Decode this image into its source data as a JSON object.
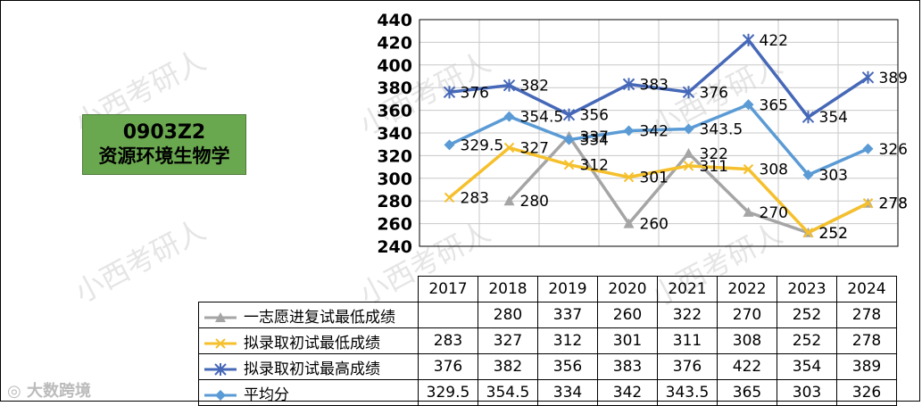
{
  "chart_data": {
    "type": "line",
    "categories": [
      "2017",
      "2018",
      "2019",
      "2020",
      "2021",
      "2022",
      "2023",
      "2024"
    ],
    "ylim": [
      240,
      440
    ],
    "yticks": [
      240,
      260,
      280,
      300,
      320,
      340,
      360,
      380,
      400,
      420,
      440
    ],
    "grid": true,
    "series": [
      {
        "name": "一志愿进复试最低成绩",
        "color": "#a5a5a5",
        "marker": "triangle",
        "values": [
          null,
          280,
          337,
          260,
          322,
          270,
          252,
          278
        ],
        "table": [
          "",
          "280",
          "337",
          "260",
          "322",
          "270",
          "252",
          "278"
        ]
      },
      {
        "name": "拟录取初试最低成绩",
        "color": "#f5c02c",
        "marker": "x",
        "values": [
          283,
          327,
          312,
          301,
          311,
          308,
          252,
          278
        ],
        "table": [
          "283",
          "327",
          "312",
          "301",
          "311",
          "308",
          "252",
          "278"
        ]
      },
      {
        "name": "拟录取初试最高成绩",
        "color": "#4668b8",
        "marker": "star",
        "values": [
          376,
          382,
          356,
          383,
          376,
          422,
          354,
          389
        ],
        "table": [
          "376",
          "382",
          "356",
          "383",
          "376",
          "422",
          "354",
          "389"
        ]
      },
      {
        "name": "平均分",
        "color": "#5b9bd5",
        "marker": "diamond",
        "values": [
          329.5,
          354.5,
          334,
          342,
          343.5,
          365,
          303,
          326
        ],
        "table": [
          "329.5",
          "354.5",
          "334",
          "342",
          "343.5",
          "365",
          "303",
          "326"
        ]
      }
    ],
    "data_labels": [
      {
        "s": 0,
        "i": 1,
        "text": "280"
      },
      {
        "s": 0,
        "i": 2,
        "text": "337"
      },
      {
        "s": 0,
        "i": 3,
        "text": "260"
      },
      {
        "s": 0,
        "i": 4,
        "text": "322"
      },
      {
        "s": 0,
        "i": 5,
        "text": "270"
      },
      {
        "s": 0,
        "i": 6,
        "text": "252"
      },
      {
        "s": 0,
        "i": 7,
        "text": "278"
      },
      {
        "s": 1,
        "i": 0,
        "text": "283"
      },
      {
        "s": 1,
        "i": 1,
        "text": "327"
      },
      {
        "s": 1,
        "i": 2,
        "text": "312"
      },
      {
        "s": 1,
        "i": 3,
        "text": "301"
      },
      {
        "s": 1,
        "i": 4,
        "text": "311"
      },
      {
        "s": 1,
        "i": 5,
        "text": "308"
      },
      {
        "s": 1,
        "i": 6,
        "text": "252"
      },
      {
        "s": 1,
        "i": 7,
        "text": "278"
      },
      {
        "s": 2,
        "i": 0,
        "text": "376"
      },
      {
        "s": 2,
        "i": 1,
        "text": "382"
      },
      {
        "s": 2,
        "i": 2,
        "text": "356"
      },
      {
        "s": 2,
        "i": 3,
        "text": "383"
      },
      {
        "s": 2,
        "i": 4,
        "text": "376"
      },
      {
        "s": 2,
        "i": 5,
        "text": "422"
      },
      {
        "s": 2,
        "i": 6,
        "text": "354"
      },
      {
        "s": 2,
        "i": 7,
        "text": "389"
      },
      {
        "s": 3,
        "i": 0,
        "text": "329.5"
      },
      {
        "s": 3,
        "i": 1,
        "text": "354.5"
      },
      {
        "s": 3,
        "i": 2,
        "text": "334"
      },
      {
        "s": 3,
        "i": 3,
        "text": "342"
      },
      {
        "s": 3,
        "i": 4,
        "text": "343.5"
      },
      {
        "s": 3,
        "i": 5,
        "text": "365"
      },
      {
        "s": 3,
        "i": 6,
        "text": "303"
      },
      {
        "s": 3,
        "i": 7,
        "text": "326"
      }
    ]
  },
  "label_box": {
    "code": "0903Z2",
    "major": "资源环境生物学"
  },
  "watermark": "小西考研人",
  "brand": "大数跨境"
}
